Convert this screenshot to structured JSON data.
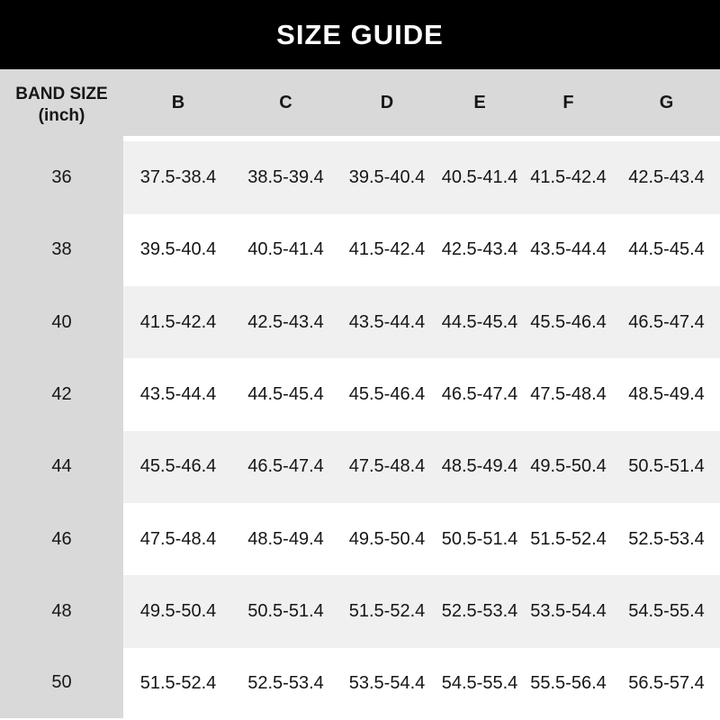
{
  "title": "SIZE GUIDE",
  "chart_data": {
    "type": "table",
    "title": "SIZE GUIDE",
    "corner_header": {
      "line1": "BAND SIZE",
      "line2": "(inch)"
    },
    "cup_columns": [
      "B",
      "C",
      "D",
      "E",
      "F",
      "G"
    ],
    "rows": [
      {
        "band": "36",
        "values": [
          "37.5-38.4",
          "38.5-39.4",
          "39.5-40.4",
          "40.5-41.4",
          "41.5-42.4",
          "42.5-43.4"
        ]
      },
      {
        "band": "38",
        "values": [
          "39.5-40.4",
          "40.5-41.4",
          "41.5-42.4",
          "42.5-43.4",
          "43.5-44.4",
          "44.5-45.4"
        ]
      },
      {
        "band": "40",
        "values": [
          "41.5-42.4",
          "42.5-43.4",
          "43.5-44.4",
          "44.5-45.4",
          "45.5-46.4",
          "46.5-47.4"
        ]
      },
      {
        "band": "42",
        "values": [
          "43.5-44.4",
          "44.5-45.4",
          "45.5-46.4",
          "46.5-47.4",
          "47.5-48.4",
          "48.5-49.4"
        ]
      },
      {
        "band": "44",
        "values": [
          "45.5-46.4",
          "46.5-47.4",
          "47.5-48.4",
          "48.5-49.4",
          "49.5-50.4",
          "50.5-51.4"
        ]
      },
      {
        "band": "46",
        "values": [
          "47.5-48.4",
          "48.5-49.4",
          "49.5-50.4",
          "50.5-51.4",
          "51.5-52.4",
          "52.5-53.4"
        ]
      },
      {
        "band": "48",
        "values": [
          "49.5-50.4",
          "50.5-51.4",
          "51.5-52.4",
          "52.5-53.4",
          "53.5-54.4",
          "54.5-55.4"
        ]
      },
      {
        "band": "50",
        "values": [
          "51.5-52.4",
          "52.5-53.4",
          "53.5-54.4",
          "54.5-55.4",
          "55.5-56.4",
          "56.5-57.4"
        ]
      }
    ],
    "layout_hints": {
      "header_row_bold": true,
      "band_column_continuous_gray": true,
      "alternating_data_rows": true
    }
  },
  "colors": {
    "banner_bg": "#000000",
    "banner_text": "#ffffff",
    "header_bg": "#d9d9d9",
    "band_column_bg": "#d9d9d9",
    "row_alt_bg": "#f0f0f0",
    "row_bg": "#ffffff",
    "text": "#161616"
  }
}
